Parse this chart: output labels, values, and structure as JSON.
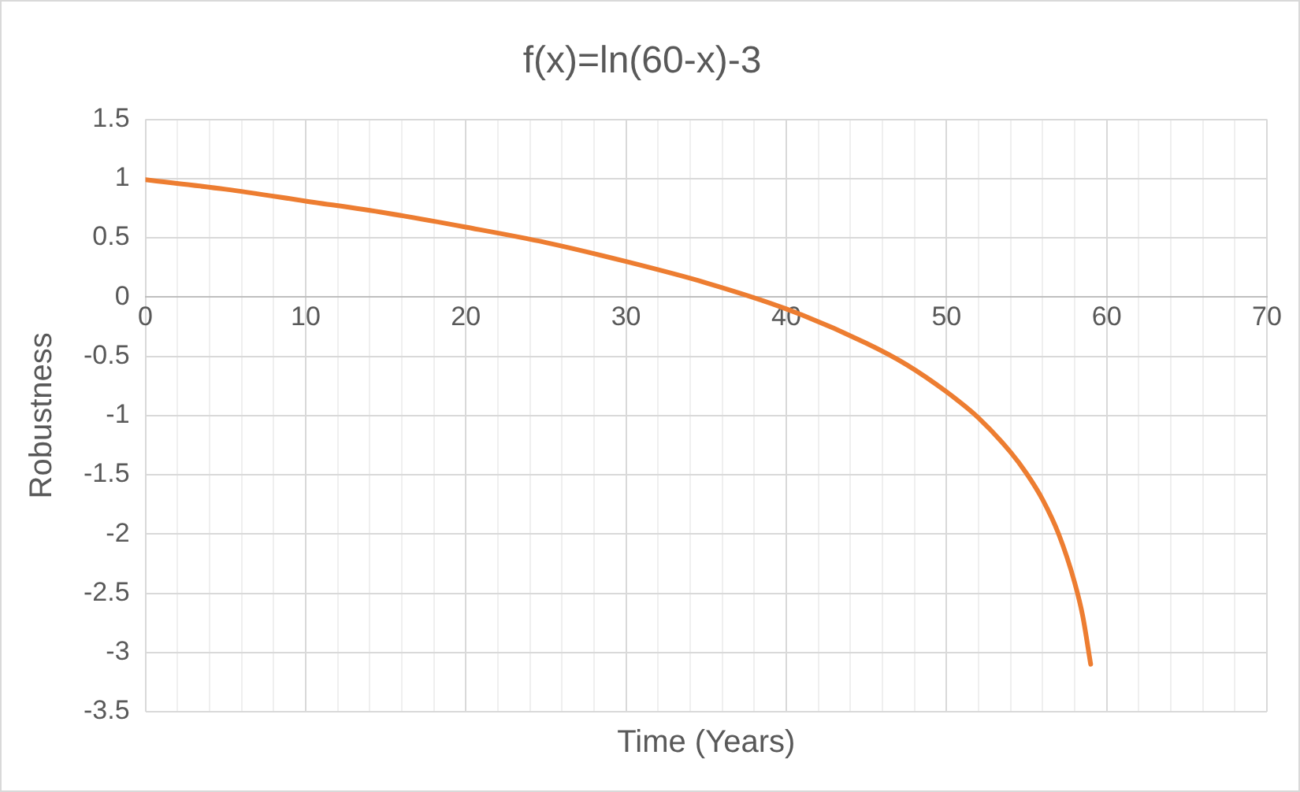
{
  "chart_data": {
    "type": "line",
    "title": "f(x)=ln(60-x)-3",
    "xlabel": "Time (Years)",
    "ylabel": "Robustness",
    "series": [
      {
        "color": "#ed7d31",
        "x": [
          0,
          5,
          10,
          15,
          20,
          25,
          30,
          35,
          40,
          45,
          47.5,
          50,
          52,
          54,
          55,
          56,
          57,
          58,
          58.5,
          59
        ],
        "values": [
          0.99,
          0.91,
          0.81,
          0.71,
          0.59,
          0.46,
          0.3,
          0.12,
          -0.1,
          -0.39,
          -0.57,
          -0.8,
          -1.02,
          -1.31,
          -1.49,
          -1.71,
          -2.0,
          -2.41,
          -2.69,
          -3.1
        ]
      }
    ],
    "xlim": [
      0,
      70
    ],
    "xticks": [
      0,
      {
        "value": 2,
        "label": null
      },
      {
        "value": 4,
        "label": null
      },
      {
        "value": 6,
        "label": null
      },
      {
        "value": 8,
        "label": null
      },
      10,
      {
        "value": 12,
        "label": null
      },
      {
        "value": 14,
        "label": null
      },
      {
        "value": 16,
        "label": null
      },
      {
        "value": 18,
        "label": null
      },
      20,
      {
        "value": 22,
        "label": null
      },
      {
        "value": 24,
        "label": null
      },
      {
        "value": 26,
        "label": null
      },
      {
        "value": 28,
        "label": null
      },
      30,
      {
        "value": 32,
        "label": null
      },
      {
        "value": 34,
        "label": null
      },
      {
        "value": 36,
        "label": null
      },
      {
        "value": 38,
        "label": null
      },
      40,
      {
        "value": 42,
        "label": null
      },
      {
        "value": 44,
        "label": null
      },
      {
        "value": 46,
        "label": null
      },
      {
        "value": 48,
        "label": null
      },
      50,
      {
        "value": 52,
        "label": null
      },
      {
        "value": 54,
        "label": null
      },
      {
        "value": 56,
        "label": null
      },
      {
        "value": 58,
        "label": null
      },
      60,
      {
        "value": 62,
        "label": null
      },
      {
        "value": 64,
        "label": null
      },
      {
        "value": 66,
        "label": null
      },
      {
        "value": 68,
        "label": null
      },
      70
    ],
    "ylim": [
      -3.5,
      1.5
    ],
    "yticks": [
      -3.5,
      -3,
      -2.5,
      -2,
      -1.5,
      -1,
      -0.5,
      0,
      0.5,
      1,
      1.5
    ],
    "grid": true,
    "legend": false,
    "marker": "none",
    "line_style": "solid"
  }
}
